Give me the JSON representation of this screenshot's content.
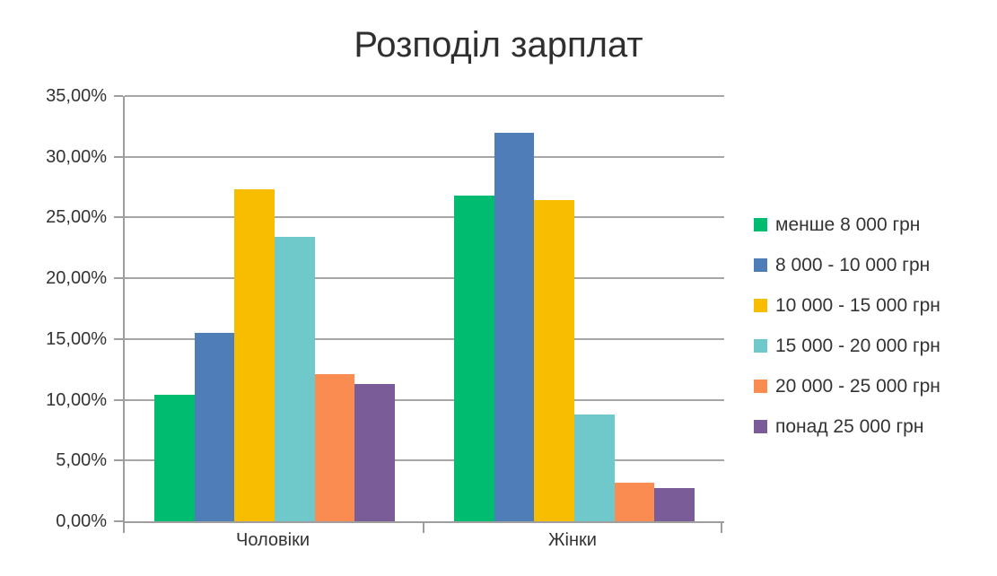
{
  "chart_data": {
    "type": "bar",
    "title": "Розподіл зарплат",
    "categories": [
      "Чоловіки",
      "Жінки"
    ],
    "series": [
      {
        "name": "менше 8 000 грн",
        "color": "#00BC70",
        "values": [
          10.4,
          26.8
        ]
      },
      {
        "name": "8 000 - 10 000 грн",
        "color": "#4E7DB8",
        "values": [
          15.5,
          32.0
        ]
      },
      {
        "name": "10 000 - 15 000 грн",
        "color": "#F9BD00",
        "values": [
          27.3,
          26.4
        ]
      },
      {
        "name": "15 000 - 20 000 грн",
        "color": "#6FC8C9",
        "values": [
          23.4,
          8.8
        ]
      },
      {
        "name": "20 000 - 25 000 грн",
        "color": "#FB8C51",
        "values": [
          12.1,
          3.2
        ]
      },
      {
        "name": "понад 25 000 грн",
        "color": "#7A5C99",
        "values": [
          11.3,
          2.7
        ]
      }
    ],
    "ylim": [
      0,
      35
    ],
    "ytick_step": 5,
    "ytick_labels": [
      "0,00%",
      "5,00%",
      "10,00%",
      "15,00%",
      "20,00%",
      "25,00%",
      "30,00%",
      "35,00%"
    ],
    "grid": true,
    "legend_position": "right"
  },
  "colors": {
    "grid": "#A6A6A6",
    "axis": "#9E9E9E",
    "text": "#333333"
  }
}
